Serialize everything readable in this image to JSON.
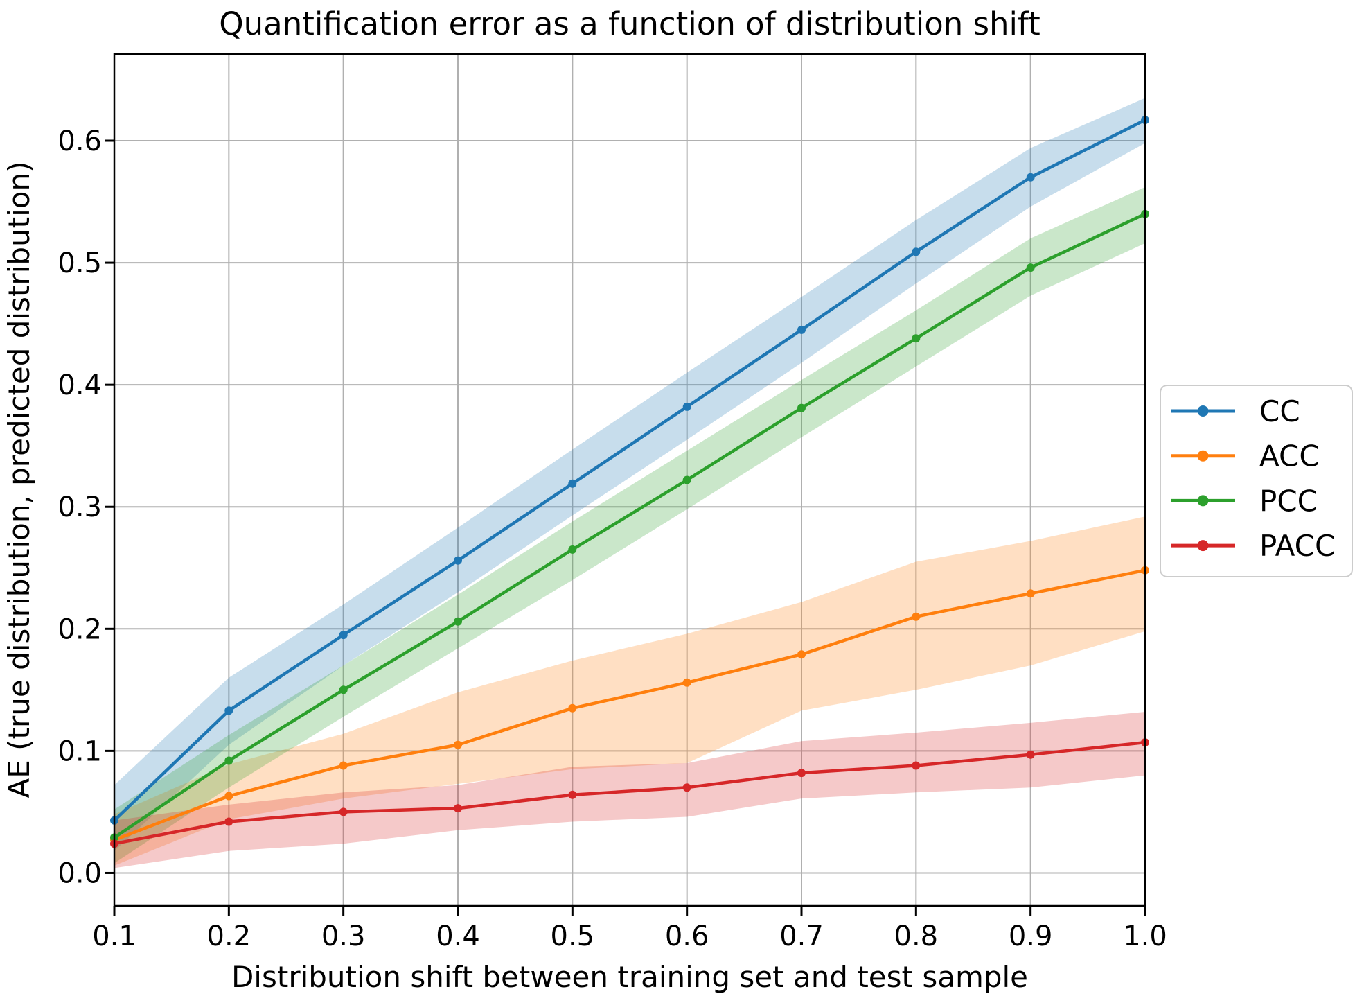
{
  "chart_data": {
    "type": "line",
    "title": "Quantification error as a function of distribution shift",
    "xlabel": "Distribution shift between training set and test sample",
    "ylabel": "AE (true distribution, predicted distribution)",
    "x": [
      0.1,
      0.2,
      0.3,
      0.4,
      0.5,
      0.6,
      0.7,
      0.8,
      0.9,
      1.0
    ],
    "x_tick_labels": [
      "0.1",
      "0.2",
      "0.3",
      "0.4",
      "0.5",
      "0.6",
      "0.7",
      "0.8",
      "0.9",
      "1.0"
    ],
    "y_ticks": [
      0.0,
      0.1,
      0.2,
      0.3,
      0.4,
      0.5,
      0.6
    ],
    "y_tick_labels": [
      "0.0",
      "0.1",
      "0.2",
      "0.3",
      "0.4",
      "0.5",
      "0.6"
    ],
    "xlim": [
      0.1,
      1.0
    ],
    "ylim": [
      -0.027,
      0.671
    ],
    "grid": true,
    "grid_color": "#b0b0b0",
    "band_opacity": 0.25,
    "legend_position": "right of axes, vertically centered",
    "series": [
      {
        "name": "CC",
        "color": "#1f77b4",
        "values": [
          0.043,
          0.133,
          0.195,
          0.256,
          0.319,
          0.382,
          0.445,
          0.509,
          0.57,
          0.617
        ],
        "band_lower": [
          0.018,
          0.105,
          0.17,
          0.23,
          0.293,
          0.355,
          0.418,
          0.483,
          0.546,
          0.598
        ],
        "band_upper": [
          0.072,
          0.16,
          0.22,
          0.283,
          0.347,
          0.41,
          0.472,
          0.535,
          0.594,
          0.635
        ]
      },
      {
        "name": "ACC",
        "color": "#ff7f0e",
        "values": [
          0.027,
          0.063,
          0.088,
          0.105,
          0.135,
          0.156,
          0.179,
          0.21,
          0.229,
          0.248
        ],
        "band_lower": [
          0.006,
          0.044,
          0.061,
          0.073,
          0.085,
          0.09,
          0.133,
          0.15,
          0.17,
          0.198
        ],
        "band_upper": [
          0.048,
          0.089,
          0.114,
          0.148,
          0.174,
          0.196,
          0.222,
          0.255,
          0.272,
          0.292
        ]
      },
      {
        "name": "PCC",
        "color": "#2ca02c",
        "values": [
          0.029,
          0.092,
          0.15,
          0.206,
          0.265,
          0.322,
          0.381,
          0.438,
          0.496,
          0.54
        ],
        "band_lower": [
          0.008,
          0.07,
          0.128,
          0.184,
          0.24,
          0.298,
          0.357,
          0.415,
          0.473,
          0.516
        ],
        "band_upper": [
          0.052,
          0.113,
          0.17,
          0.228,
          0.288,
          0.346,
          0.404,
          0.461,
          0.52,
          0.562
        ]
      },
      {
        "name": "PACC",
        "color": "#d62728",
        "values": [
          0.024,
          0.042,
          0.05,
          0.053,
          0.064,
          0.07,
          0.082,
          0.088,
          0.097,
          0.107
        ],
        "band_lower": [
          0.004,
          0.018,
          0.024,
          0.035,
          0.042,
          0.046,
          0.061,
          0.066,
          0.07,
          0.08
        ],
        "band_upper": [
          0.043,
          0.056,
          0.066,
          0.072,
          0.087,
          0.09,
          0.108,
          0.115,
          0.123,
          0.132
        ]
      }
    ]
  },
  "legend": {
    "items": [
      "CC",
      "ACC",
      "PCC",
      "PACC"
    ]
  }
}
